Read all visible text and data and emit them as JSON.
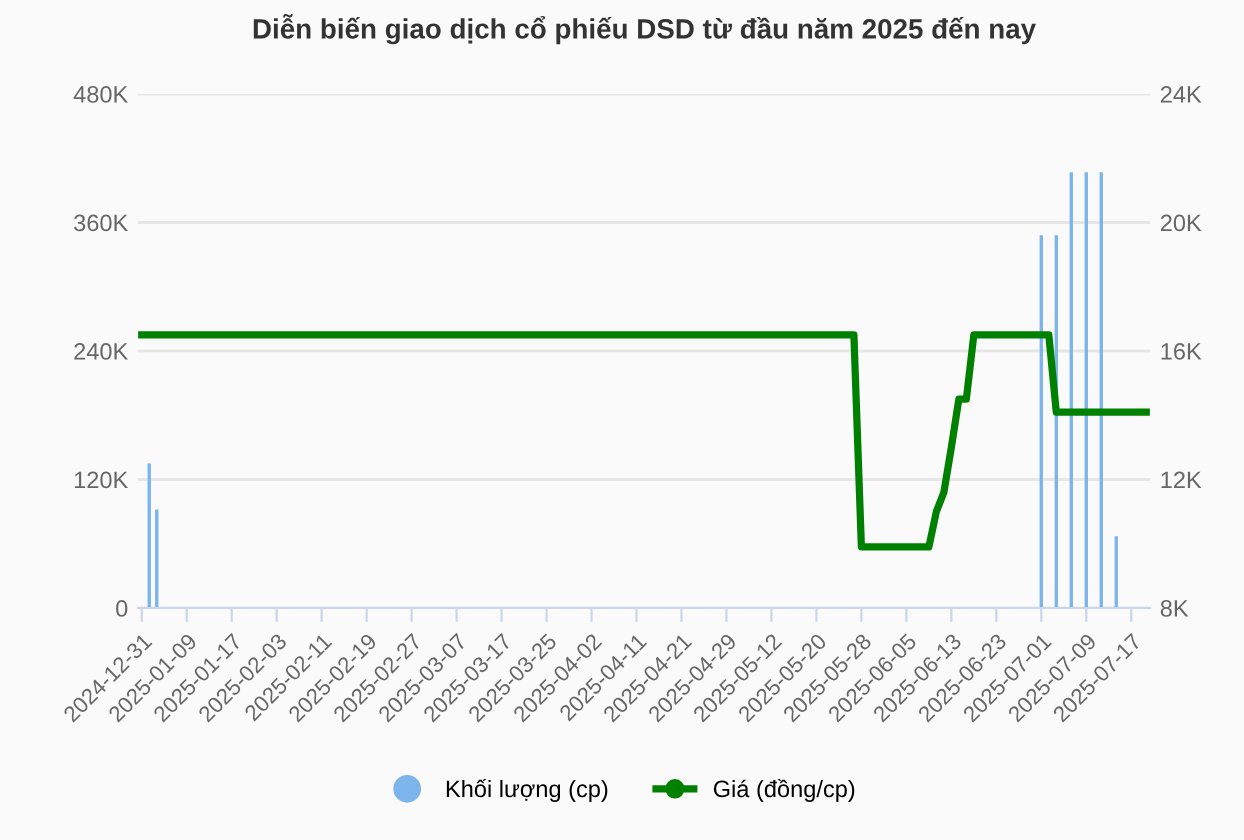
{
  "chart_data": {
    "type": "bar",
    "title": "Diễn biến giao dịch cổ phiếu DSD từ đầu năm 2025 đến nay",
    "categories": [
      "2024-12-31",
      null,
      null,
      null,
      null,
      null,
      "2025-01-09",
      null,
      null,
      null,
      null,
      null,
      "2025-01-17",
      null,
      null,
      null,
      null,
      null,
      "2025-02-03",
      null,
      null,
      null,
      null,
      null,
      "2025-02-11",
      null,
      null,
      null,
      null,
      null,
      "2025-02-19",
      null,
      null,
      null,
      null,
      null,
      "2025-02-27",
      null,
      null,
      null,
      null,
      null,
      "2025-03-07",
      null,
      null,
      null,
      null,
      null,
      "2025-03-17",
      null,
      null,
      null,
      null,
      null,
      "2025-03-25",
      null,
      null,
      null,
      null,
      null,
      "2025-04-02",
      null,
      null,
      null,
      null,
      null,
      "2025-04-11",
      null,
      null,
      null,
      null,
      null,
      "2025-04-21",
      null,
      null,
      null,
      null,
      null,
      "2025-04-29",
      null,
      null,
      null,
      null,
      null,
      "2025-05-12",
      null,
      null,
      null,
      null,
      null,
      "2025-05-20",
      null,
      null,
      null,
      null,
      null,
      "2025-05-28",
      null,
      null,
      null,
      null,
      null,
      "2025-06-05",
      null,
      null,
      null,
      null,
      null,
      "2025-06-13",
      null,
      null,
      null,
      null,
      null,
      "2025-06-23",
      null,
      null,
      null,
      null,
      null,
      "2025-07-01",
      null,
      null,
      null,
      null,
      null,
      "2025-07-09",
      null,
      null,
      null,
      null,
      null,
      "2025-07-17",
      null,
      null
    ],
    "series": [
      {
        "name": "Khối lượng (cp)",
        "color": "#7cb5ec",
        "values": [
          0,
          135000,
          92000,
          0,
          0,
          0,
          0,
          0,
          0,
          0,
          0,
          0,
          0,
          0,
          0,
          0,
          0,
          0,
          0,
          0,
          0,
          0,
          0,
          0,
          0,
          0,
          0,
          0,
          0,
          0,
          0,
          0,
          0,
          0,
          0,
          0,
          0,
          0,
          0,
          0,
          0,
          0,
          0,
          0,
          0,
          0,
          0,
          0,
          0,
          0,
          0,
          0,
          0,
          0,
          0,
          0,
          0,
          0,
          0,
          0,
          0,
          0,
          0,
          0,
          0,
          0,
          0,
          0,
          0,
          0,
          0,
          0,
          0,
          0,
          0,
          0,
          0,
          0,
          0,
          0,
          0,
          0,
          0,
          0,
          0,
          0,
          0,
          0,
          0,
          0,
          0,
          0,
          0,
          0,
          0,
          0,
          0,
          0,
          0,
          0,
          0,
          0,
          0,
          0,
          0,
          0,
          0,
          0,
          0,
          0,
          0,
          0,
          0,
          0,
          0,
          0,
          0,
          0,
          0,
          0,
          348000,
          0,
          348000,
          0,
          407000,
          0,
          407000,
          0,
          407000,
          0,
          67000,
          0,
          0,
          0,
          0
        ]
      },
      {
        "name": "Giá (đồng/cp)",
        "type": "line",
        "axis": "y2",
        "color": "#008000",
        "values": [
          16500,
          16500,
          16500,
          16500,
          16500,
          16500,
          16500,
          16500,
          16500,
          16500,
          16500,
          16500,
          16500,
          16500,
          16500,
          16500,
          16500,
          16500,
          16500,
          16500,
          16500,
          16500,
          16500,
          16500,
          16500,
          16500,
          16500,
          16500,
          16500,
          16500,
          16500,
          16500,
          16500,
          16500,
          16500,
          16500,
          16500,
          16500,
          16500,
          16500,
          16500,
          16500,
          16500,
          16500,
          16500,
          16500,
          16500,
          16500,
          16500,
          16500,
          16500,
          16500,
          16500,
          16500,
          16500,
          16500,
          16500,
          16500,
          16500,
          16500,
          16500,
          16500,
          16500,
          16500,
          16500,
          16500,
          16500,
          16500,
          16500,
          16500,
          16500,
          16500,
          16500,
          16500,
          16500,
          16500,
          16500,
          16500,
          16500,
          16500,
          16500,
          16500,
          16500,
          16500,
          16500,
          16500,
          16500,
          16500,
          16500,
          16500,
          16500,
          16500,
          16500,
          16500,
          16500,
          16500,
          9900,
          9900,
          9900,
          9900,
          9900,
          9900,
          9900,
          9900,
          9900,
          9900,
          11000,
          11600,
          13000,
          14500,
          14500,
          16500,
          16500,
          16500,
          16500,
          16500,
          16500,
          16500,
          16500,
          16500,
          16500,
          16500,
          14100,
          14100,
          14100,
          14100,
          14100,
          14100,
          14100,
          14100,
          14100,
          14100,
          14100,
          14100,
          14100
        ]
      }
    ],
    "ylim": [
      0,
      480000
    ],
    "yticks": [
      {
        "value": 0,
        "label": "0"
      },
      {
        "value": 120000,
        "label": "120K"
      },
      {
        "value": 240000,
        "label": "240K"
      },
      {
        "value": 360000,
        "label": "360K"
      },
      {
        "value": 480000,
        "label": "480K"
      }
    ],
    "y2lim": [
      8000,
      24000
    ],
    "y2ticks": [
      {
        "value": 8000,
        "label": "8K"
      },
      {
        "value": 12000,
        "label": "12K"
      },
      {
        "value": 16000,
        "label": "16K"
      },
      {
        "value": 20000,
        "label": "20K"
      },
      {
        "value": 24000,
        "label": "24K"
      }
    ],
    "grid": "y",
    "legend": "bottom"
  }
}
